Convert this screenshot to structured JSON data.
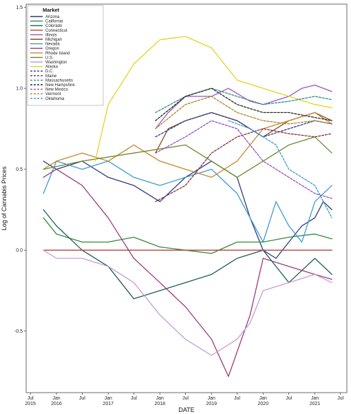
{
  "chart_data": {
    "type": "line",
    "title": "",
    "xlabel": "DATE",
    "ylabel": "Log of Cannabis Prices",
    "ylim": [
      -0.88,
      1.52
    ],
    "xlim": [
      "2015-06-01",
      "2021-08-15"
    ],
    "yticks": [
      "-0.5",
      "0.0",
      "0.5",
      "1.0",
      "1.5"
    ],
    "ytick_values": [
      -0.5,
      0.0,
      0.5,
      1.0,
      1.5
    ],
    "xticks": [
      {
        "date": "2015-07-01",
        "line1": "Jul",
        "line2": "2015"
      },
      {
        "date": "2016-01-01",
        "line1": "Jan",
        "line2": "2016"
      },
      {
        "date": "2016-07-01",
        "line1": "Jul",
        "line2": ""
      },
      {
        "date": "2017-01-01",
        "line1": "Jan",
        "line2": "2017"
      },
      {
        "date": "2017-07-01",
        "line1": "Jul",
        "line2": ""
      },
      {
        "date": "2018-01-01",
        "line1": "Jan",
        "line2": "2018"
      },
      {
        "date": "2018-07-01",
        "line1": "Jul",
        "line2": ""
      },
      {
        "date": "2019-01-01",
        "line1": "Jan",
        "line2": "2019"
      },
      {
        "date": "2019-07-01",
        "line1": "Jul",
        "line2": ""
      },
      {
        "date": "2020-01-01",
        "line1": "Jan",
        "line2": "2020"
      },
      {
        "date": "2020-07-01",
        "line1": "Jul",
        "line2": ""
      },
      {
        "date": "2021-01-01",
        "line1": "Jan",
        "line2": "2021"
      },
      {
        "date": "2021-07-01",
        "line1": "Jul",
        "line2": ""
      }
    ],
    "grid": false,
    "legend": {
      "title": "Market",
      "placement": "top-left"
    },
    "series": [
      {
        "name": "Arizona",
        "color": "#2b3a7a",
        "dash": false,
        "points": [
          [
            "2015-10-01",
            0.55
          ],
          [
            "2016-01-01",
            0.5
          ],
          [
            "2016-07-01",
            0.55
          ],
          [
            "2017-01-01",
            0.45
          ],
          [
            "2017-07-01",
            0.4
          ],
          [
            "2018-01-01",
            0.3
          ],
          [
            "2018-07-01",
            0.45
          ],
          [
            "2019-01-01",
            0.55
          ],
          [
            "2019-07-01",
            0.45
          ],
          [
            "2019-10-01",
            0.2
          ],
          [
            "2020-01-01",
            0.0
          ],
          [
            "2020-04-01",
            -0.05
          ],
          [
            "2020-07-01",
            0.05
          ],
          [
            "2020-10-01",
            0.15
          ],
          [
            "2021-01-01",
            0.2
          ],
          [
            "2021-03-01",
            0.3
          ],
          [
            "2021-05-01",
            0.25
          ]
        ]
      },
      {
        "name": "California",
        "color": "#2f8a3a",
        "dash": false,
        "points": [
          [
            "2015-10-01",
            0.2
          ],
          [
            "2016-01-01",
            0.1
          ],
          [
            "2016-07-01",
            0.05
          ],
          [
            "2017-01-01",
            0.05
          ],
          [
            "2017-07-01",
            0.08
          ],
          [
            "2018-01-01",
            0.02
          ],
          [
            "2018-07-01",
            0.0
          ],
          [
            "2019-01-01",
            -0.02
          ],
          [
            "2019-07-01",
            0.05
          ],
          [
            "2020-01-01",
            0.05
          ],
          [
            "2020-07-01",
            0.08
          ],
          [
            "2021-01-01",
            0.1
          ],
          [
            "2021-05-01",
            0.07
          ]
        ]
      },
      {
        "name": "Colorado",
        "color": "#1b5a5a",
        "dash": false,
        "points": [
          [
            "2015-10-01",
            0.25
          ],
          [
            "2016-01-01",
            0.15
          ],
          [
            "2016-07-01",
            0.0
          ],
          [
            "2017-01-01",
            -0.1
          ],
          [
            "2017-07-01",
            -0.3
          ],
          [
            "2018-01-01",
            -0.25
          ],
          [
            "2018-07-01",
            -0.2
          ],
          [
            "2019-01-01",
            -0.15
          ],
          [
            "2019-07-01",
            -0.05
          ],
          [
            "2020-01-01",
            0.0
          ],
          [
            "2020-07-01",
            -0.2
          ],
          [
            "2021-01-01",
            -0.05
          ],
          [
            "2021-05-01",
            -0.15
          ]
        ]
      },
      {
        "name": "Connecticut",
        "color": "#b3423a",
        "dash": false,
        "points": [
          [
            "2015-10-01",
            0.0
          ],
          [
            "2016-07-01",
            0.0
          ],
          [
            "2017-07-01",
            0.0
          ],
          [
            "2018-07-01",
            0.0
          ],
          [
            "2019-07-01",
            0.0
          ],
          [
            "2020-07-01",
            0.0
          ],
          [
            "2021-05-01",
            0.0
          ]
        ]
      },
      {
        "name": "Illinois",
        "color": "#a04ec0",
        "dash": false,
        "points": [
          [
            "2017-12-01",
            0.75
          ],
          [
            "2018-03-01",
            0.85
          ],
          [
            "2018-07-01",
            0.95
          ],
          [
            "2019-01-01",
            0.95
          ],
          [
            "2019-05-01",
            1.0
          ],
          [
            "2019-10-01",
            0.92
          ],
          [
            "2020-01-01",
            0.9
          ],
          [
            "2020-07-01",
            0.95
          ],
          [
            "2020-10-01",
            1.0
          ],
          [
            "2021-01-01",
            1.02
          ],
          [
            "2021-05-01",
            0.98
          ]
        ]
      },
      {
        "name": "Michigan",
        "color": "#8a4a1a",
        "dash": false,
        "points": [
          [
            "2017-12-01",
            0.6
          ],
          [
            "2018-03-01",
            0.75
          ],
          [
            "2018-07-01",
            0.8
          ],
          [
            "2019-01-01",
            0.85
          ],
          [
            "2019-07-01",
            0.8
          ],
          [
            "2020-01-01",
            0.7
          ],
          [
            "2020-07-01",
            0.8
          ],
          [
            "2021-01-01",
            0.85
          ],
          [
            "2021-05-01",
            0.8
          ]
        ]
      },
      {
        "name": "Nevada",
        "color": "#3a9ad0",
        "dash": false,
        "points": [
          [
            "2015-10-01",
            0.35
          ],
          [
            "2016-01-01",
            0.55
          ],
          [
            "2016-07-01",
            0.5
          ],
          [
            "2017-01-01",
            0.55
          ],
          [
            "2017-07-01",
            0.45
          ],
          [
            "2018-01-01",
            0.4
          ],
          [
            "2018-07-01",
            0.45
          ],
          [
            "2019-01-01",
            0.5
          ],
          [
            "2019-07-01",
            0.35
          ],
          [
            "2019-10-01",
            0.2
          ],
          [
            "2020-01-01",
            0.05
          ],
          [
            "2020-04-01",
            0.3
          ],
          [
            "2020-07-01",
            0.15
          ],
          [
            "2020-10-01",
            0.05
          ],
          [
            "2021-01-01",
            0.3
          ],
          [
            "2021-05-01",
            0.4
          ]
        ]
      },
      {
        "name": "Oregon",
        "color": "#9a3a7a",
        "dash": false,
        "points": [
          [
            "2015-10-01",
            0.45
          ],
          [
            "2016-01-01",
            0.5
          ],
          [
            "2016-07-01",
            0.4
          ],
          [
            "2017-01-01",
            0.2
          ],
          [
            "2017-07-01",
            -0.05
          ],
          [
            "2018-01-01",
            -0.2
          ],
          [
            "2018-07-01",
            -0.35
          ],
          [
            "2019-01-01",
            -0.55
          ],
          [
            "2019-05-01",
            -0.78
          ],
          [
            "2019-10-01",
            -0.4
          ],
          [
            "2020-01-01",
            -0.05
          ],
          [
            "2020-07-01",
            -0.1
          ],
          [
            "2021-01-01",
            -0.15
          ],
          [
            "2021-05-01",
            -0.18
          ]
        ]
      },
      {
        "name": "Rhode Island",
        "color": "#c8842a",
        "dash": false,
        "points": [
          [
            "2015-10-01",
            0.5
          ],
          [
            "2016-01-01",
            0.55
          ],
          [
            "2016-07-01",
            0.6
          ],
          [
            "2017-01-01",
            0.55
          ],
          [
            "2017-07-01",
            0.65
          ],
          [
            "2018-01-01",
            0.55
          ],
          [
            "2018-07-01",
            0.5
          ],
          [
            "2019-01-01",
            0.45
          ],
          [
            "2019-07-01",
            0.55
          ],
          [
            "2020-01-01",
            0.75
          ],
          [
            "2020-07-01",
            0.8
          ],
          [
            "2021-01-01",
            0.85
          ],
          [
            "2021-05-01",
            0.78
          ]
        ]
      },
      {
        "name": "U.S.",
        "color": "#6b8a2a",
        "dash": false,
        "points": [
          [
            "2015-10-01",
            0.5
          ],
          [
            "2016-07-01",
            0.55
          ],
          [
            "2017-07-01",
            0.6
          ],
          [
            "2018-07-01",
            0.65
          ],
          [
            "2019-01-01",
            0.55
          ],
          [
            "2019-07-01",
            0.45
          ],
          [
            "2020-01-01",
            0.55
          ],
          [
            "2020-07-01",
            0.65
          ],
          [
            "2021-01-01",
            0.7
          ],
          [
            "2021-05-01",
            0.6
          ]
        ]
      },
      {
        "name": "Washington",
        "color": "#c89ad8",
        "dash": false,
        "points": [
          [
            "2015-10-01",
            0.0
          ],
          [
            "2016-01-01",
            -0.05
          ],
          [
            "2016-07-01",
            -0.05
          ],
          [
            "2017-01-01",
            -0.1
          ],
          [
            "2017-07-01",
            -0.2
          ],
          [
            "2018-01-01",
            -0.4
          ],
          [
            "2018-07-01",
            -0.55
          ],
          [
            "2019-01-01",
            -0.65
          ],
          [
            "2019-07-01",
            -0.55
          ],
          [
            "2019-10-01",
            -0.45
          ],
          [
            "2020-01-01",
            -0.25
          ],
          [
            "2020-07-01",
            -0.2
          ],
          [
            "2021-01-01",
            -0.15
          ],
          [
            "2021-05-01",
            -0.2
          ]
        ]
      },
      {
        "name": "Alaska",
        "color": "#e8d020",
        "dash": false,
        "points": [
          [
            "2016-10-01",
            0.55
          ],
          [
            "2017-01-01",
            0.9
          ],
          [
            "2017-07-01",
            1.15
          ],
          [
            "2018-01-01",
            1.3
          ],
          [
            "2018-07-01",
            1.32
          ],
          [
            "2019-01-01",
            1.25
          ],
          [
            "2019-07-01",
            1.05
          ],
          [
            "2020-01-01",
            1.0
          ],
          [
            "2020-07-01",
            0.95
          ],
          [
            "2021-01-01",
            0.9
          ],
          [
            "2021-05-01",
            0.88
          ]
        ]
      },
      {
        "name": "D.C.",
        "color": "#2a3a8a",
        "dash": true,
        "points": [
          [
            "2017-12-01",
            0.7
          ],
          [
            "2018-07-01",
            0.8
          ],
          [
            "2019-01-01",
            0.85
          ],
          [
            "2019-07-01",
            0.8
          ],
          [
            "2020-01-01",
            0.7
          ],
          [
            "2020-07-01",
            0.75
          ],
          [
            "2021-01-01",
            0.8
          ],
          [
            "2021-05-01",
            0.78
          ]
        ]
      },
      {
        "name": "Maine",
        "color": "#8a2a3a",
        "dash": true,
        "points": [
          [
            "2017-12-01",
            0.3
          ],
          [
            "2018-07-01",
            0.4
          ],
          [
            "2019-01-01",
            0.6
          ],
          [
            "2019-07-01",
            0.7
          ],
          [
            "2020-01-01",
            0.75
          ],
          [
            "2020-07-01",
            0.72
          ],
          [
            "2021-01-01",
            0.7
          ],
          [
            "2021-05-01",
            0.72
          ]
        ]
      },
      {
        "name": "Massachusetts",
        "color": "#2a8a8a",
        "dash": true,
        "points": [
          [
            "2017-12-01",
            0.85
          ],
          [
            "2018-07-01",
            0.95
          ],
          [
            "2019-01-01",
            1.0
          ],
          [
            "2019-07-01",
            0.95
          ],
          [
            "2020-01-01",
            0.9
          ],
          [
            "2020-07-01",
            0.92
          ],
          [
            "2021-01-01",
            0.95
          ],
          [
            "2021-05-01",
            0.93
          ]
        ]
      },
      {
        "name": "New Hampshire",
        "color": "#1a2a1a",
        "dash": true,
        "points": [
          [
            "2017-12-01",
            0.8
          ],
          [
            "2018-07-01",
            0.95
          ],
          [
            "2019-01-01",
            1.0
          ],
          [
            "2019-07-01",
            0.9
          ],
          [
            "2020-01-01",
            0.85
          ],
          [
            "2020-07-01",
            0.85
          ],
          [
            "2021-01-01",
            0.82
          ],
          [
            "2021-05-01",
            0.8
          ]
        ]
      },
      {
        "name": "New Mexico",
        "color": "#9a4ab8",
        "dash": true,
        "points": [
          [
            "2017-12-01",
            0.6
          ],
          [
            "2018-07-01",
            0.7
          ],
          [
            "2019-01-01",
            0.8
          ],
          [
            "2019-07-01",
            0.75
          ],
          [
            "2020-01-01",
            0.55
          ],
          [
            "2020-07-01",
            0.45
          ],
          [
            "2021-01-01",
            0.35
          ],
          [
            "2021-05-01",
            0.32
          ]
        ]
      },
      {
        "name": "Vermont",
        "color": "#a8842a",
        "dash": true,
        "points": [
          [
            "2017-12-01",
            0.75
          ],
          [
            "2018-07-01",
            0.9
          ],
          [
            "2019-01-01",
            0.95
          ],
          [
            "2019-07-01",
            0.85
          ],
          [
            "2020-01-01",
            0.8
          ],
          [
            "2020-07-01",
            0.78
          ],
          [
            "2021-01-01",
            0.8
          ],
          [
            "2021-05-01",
            0.78
          ]
        ]
      },
      {
        "name": "Oklahoma",
        "color": "#3a9ad0",
        "dash": true,
        "points": [
          [
            "2019-05-01",
            0.8
          ],
          [
            "2019-10-01",
            0.75
          ],
          [
            "2020-01-01",
            0.7
          ],
          [
            "2020-04-01",
            0.65
          ],
          [
            "2020-07-01",
            0.5
          ],
          [
            "2020-10-01",
            0.45
          ],
          [
            "2021-01-01",
            0.4
          ],
          [
            "2021-05-01",
            0.2
          ]
        ]
      }
    ]
  }
}
